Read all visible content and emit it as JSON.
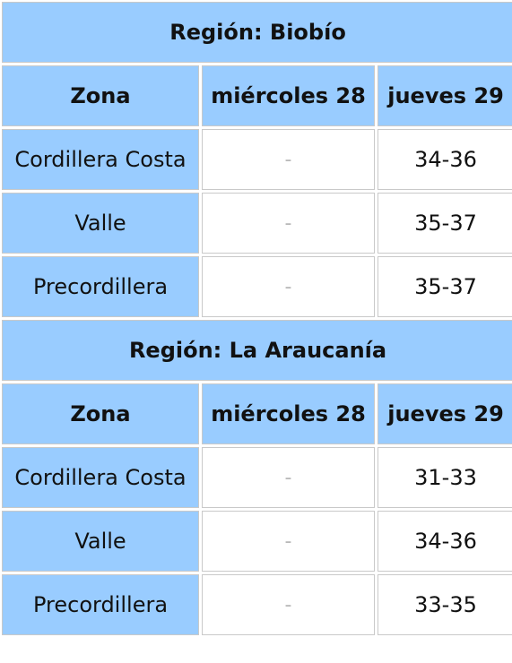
{
  "regions": [
    {
      "title": "Región: Biobío",
      "headers": [
        "Zona",
        "miércoles 28",
        "jueves 29"
      ],
      "rows": [
        {
          "zona": "Cordillera Costa",
          "miercoles": "-",
          "jueves": "34-36"
        },
        {
          "zona": "Valle",
          "miercoles": "-",
          "jueves": "35-37"
        },
        {
          "zona": "Precordillera",
          "miercoles": "-",
          "jueves": "35-37"
        }
      ]
    },
    {
      "title": "Región: La Araucanía",
      "headers": [
        "Zona",
        "miércoles 28",
        "jueves 29"
      ],
      "rows": [
        {
          "zona": "Cordillera Costa",
          "miercoles": "-",
          "jueves": "31-33"
        },
        {
          "zona": "Valle",
          "miercoles": "-",
          "jueves": "34-36"
        },
        {
          "zona": "Precordillera",
          "miercoles": "-",
          "jueves": "33-35"
        }
      ]
    }
  ],
  "colors": {
    "header_bg": "#99ccff",
    "cell_bg": "#ffffff",
    "dash": "#b8b8b8"
  }
}
